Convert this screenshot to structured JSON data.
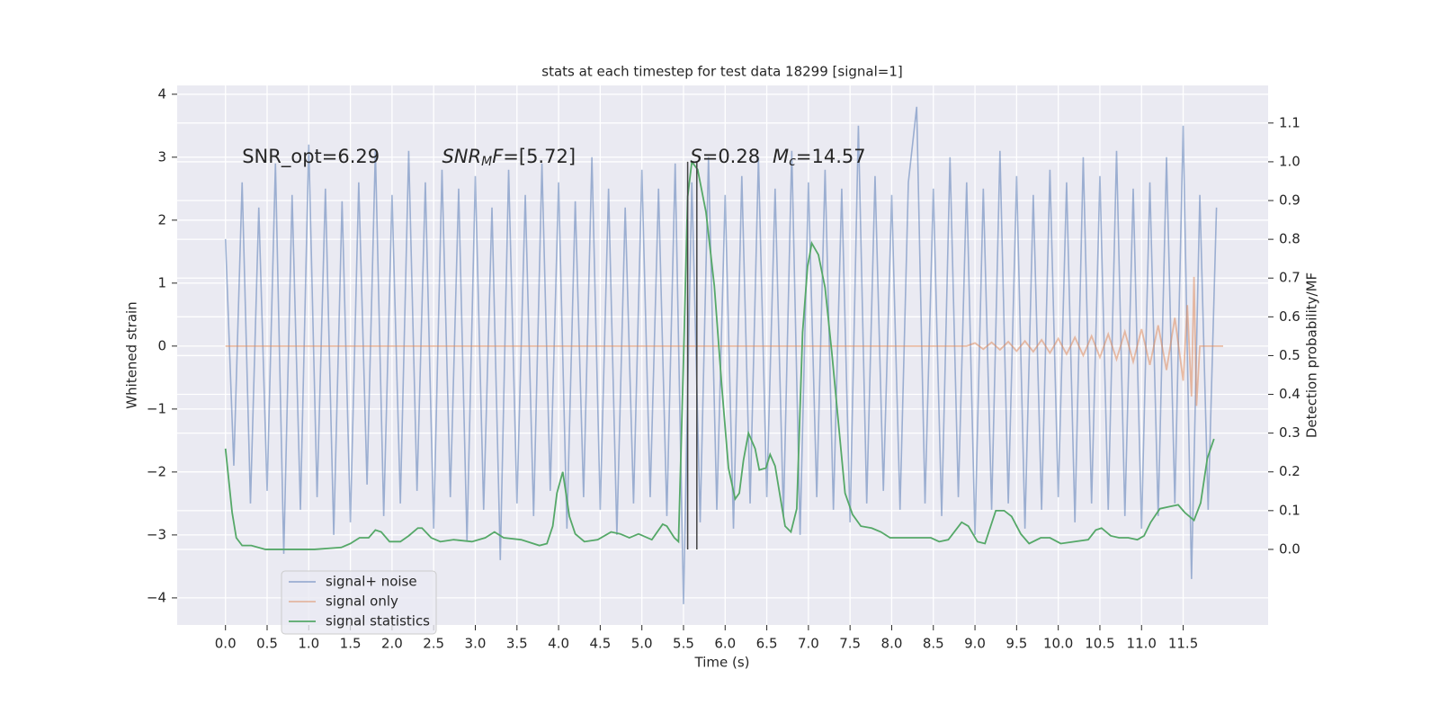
{
  "chart_data": {
    "type": "line",
    "title": "stats at each timestep for test data 18299 [signal=1]",
    "xlabel": "Time (s)",
    "ylabel": "Whitened strain",
    "y2label": "Detection probability/MF",
    "xlim": [
      -0.58,
      12.52
    ],
    "ylim": [
      -4.43,
      4.14
    ],
    "y2lim": [
      -0.195,
      1.197
    ],
    "xticks": [
      {
        "value": 0,
        "label": "0.0"
      },
      {
        "value": 0.5,
        "label": "0.5"
      },
      {
        "value": 1,
        "label": "1.0"
      },
      {
        "value": 1.5,
        "label": "1.5"
      },
      {
        "value": 2,
        "label": "2.0"
      },
      {
        "value": 2.5,
        "label": "2.5"
      },
      {
        "value": 3,
        "label": "3.0"
      },
      {
        "value": 3.5,
        "label": "3.5"
      },
      {
        "value": 4,
        "label": "4.0"
      },
      {
        "value": 4.5,
        "label": "4.5"
      },
      {
        "value": 5,
        "label": "5.0"
      },
      {
        "value": 5.5,
        "label": "5.5"
      },
      {
        "value": 6,
        "label": "6.0"
      },
      {
        "value": 6.5,
        "label": "6.5"
      },
      {
        "value": 7,
        "label": "7.0"
      },
      {
        "value": 7.5,
        "label": "7.5"
      },
      {
        "value": 8,
        "label": "8.0"
      },
      {
        "value": 8.5,
        "label": "8.5"
      },
      {
        "value": 9,
        "label": "9.0"
      },
      {
        "value": 9.5,
        "label": "9.5"
      },
      {
        "value": 10,
        "label": "10.0"
      },
      {
        "value": 10.5,
        "label": "10.5"
      },
      {
        "value": 11,
        "label": "11.0"
      },
      {
        "value": 11.5,
        "label": "11.5"
      }
    ],
    "yticks": [
      {
        "value": -4,
        "label": "−4"
      },
      {
        "value": -3,
        "label": "−3"
      },
      {
        "value": -2,
        "label": "−2"
      },
      {
        "value": -1,
        "label": "−1"
      },
      0,
      1,
      2,
      3,
      4
    ],
    "y2ticks": [
      {
        "value": 0,
        "label": "0.0"
      },
      {
        "value": 0.1,
        "label": "0.1"
      },
      {
        "value": 0.2,
        "label": "0.2"
      },
      {
        "value": 0.3,
        "label": "0.3"
      },
      {
        "value": 0.4,
        "label": "0.4"
      },
      {
        "value": 0.5,
        "label": "0.5"
      },
      {
        "value": 0.6,
        "label": "0.6"
      },
      {
        "value": 0.7,
        "label": "0.7"
      },
      {
        "value": 0.8,
        "label": "0.8"
      },
      {
        "value": 0.9,
        "label": "0.9"
      },
      {
        "value": 1.0,
        "label": "1.0"
      },
      {
        "value": 1.1,
        "label": "1.1"
      }
    ],
    "grid": true,
    "background": "#eaeaf2",
    "legend": "lower left",
    "series": [
      {
        "name": "signal+ noise",
        "color": "#4c72b0",
        "opacity": 0.5,
        "x": [
          0,
          0.1,
          0.2,
          0.3,
          0.4,
          0.5,
          0.6,
          0.7,
          0.8,
          0.9,
          1,
          1.1,
          1.2,
          1.3,
          1.4,
          1.5,
          1.6,
          1.7,
          1.8,
          1.9,
          2,
          2.1,
          2.2,
          2.3,
          2.4,
          2.5,
          2.6,
          2.7,
          2.8,
          2.9,
          3,
          3.1,
          3.2,
          3.3,
          3.4,
          3.5,
          3.6,
          3.7,
          3.8,
          3.9,
          4,
          4.1,
          4.2,
          4.3,
          4.4,
          4.5,
          4.6,
          4.7,
          4.8,
          4.9,
          5,
          5.1,
          5.2,
          5.3,
          5.4,
          5.5,
          5.6,
          5.7,
          5.8,
          5.9,
          6,
          6.1,
          6.2,
          6.3,
          6.4,
          6.5,
          6.6,
          6.7,
          6.8,
          6.9,
          7,
          7.1,
          7.2,
          7.3,
          7.4,
          7.5,
          7.6,
          7.7,
          7.8,
          7.9,
          8,
          8.1,
          8.2,
          8.3,
          8.4,
          8.5,
          8.6,
          8.7,
          8.8,
          8.9,
          9,
          9.1,
          9.2,
          9.3,
          9.4,
          9.5,
          9.6,
          9.7,
          9.8,
          9.9,
          10,
          10.1,
          10.2,
          10.3,
          10.4,
          10.5,
          10.6,
          10.7,
          10.8,
          10.9,
          11,
          11.1,
          11.2,
          11.3,
          11.4,
          11.5,
          11.6,
          11.7,
          11.8,
          11.9
        ],
        "values": [
          1.7,
          -1.9,
          2.6,
          -2.5,
          2.2,
          -2.3,
          2.9,
          -3.3,
          2.4,
          -2.6,
          3.2,
          -2.4,
          2.5,
          -3.0,
          2.3,
          -2.8,
          2.6,
          -2.2,
          3.1,
          -2.7,
          2.4,
          -2.5,
          3.1,
          -2.3,
          2.6,
          -2.9,
          2.8,
          -2.4,
          2.5,
          -3.1,
          2.7,
          -2.6,
          2.2,
          -3.4,
          2.8,
          -2.5,
          2.4,
          -2.7,
          2.9,
          -2.3,
          2.6,
          -2.9,
          2.3,
          -2.4,
          3.0,
          -2.6,
          2.5,
          -3.0,
          2.2,
          -2.5,
          2.8,
          -2.4,
          2.5,
          -2.7,
          2.9,
          -4.1,
          2.6,
          -2.8,
          3.0,
          -2.6,
          2.4,
          -2.9,
          2.7,
          -2.5,
          3.0,
          -2.4,
          2.5,
          -2.7,
          3.1,
          -3.0,
          2.6,
          -2.4,
          2.8,
          -2.6,
          2.5,
          -2.8,
          3.5,
          -2.5,
          2.7,
          -2.3,
          2.4,
          -2.6,
          2.6,
          3.8,
          -2.5,
          2.5,
          -2.7,
          3.0,
          -2.4,
          2.6,
          -3.0,
          2.5,
          -2.6,
          3.1,
          -2.5,
          2.7,
          -2.9,
          2.4,
          -2.6,
          2.8,
          -2.4,
          2.6,
          -2.8,
          3.0,
          -2.5,
          2.7,
          -2.6,
          3.1,
          -2.7,
          2.5,
          -2.9,
          2.6,
          -2.7,
          3.0,
          -2.5,
          3.5,
          -3.7,
          2.4,
          -2.6,
          2.2
        ]
      },
      {
        "name": "signal only",
        "color": "#dd8452",
        "opacity": 0.5,
        "x": [
          0,
          8.9,
          9.0,
          9.1,
          9.2,
          9.3,
          9.4,
          9.5,
          9.6,
          9.7,
          9.8,
          9.9,
          10.0,
          10.1,
          10.2,
          10.3,
          10.4,
          10.5,
          10.6,
          10.7,
          10.8,
          10.9,
          11.0,
          11.1,
          11.2,
          11.3,
          11.4,
          11.5,
          11.55,
          11.6,
          11.63,
          11.66,
          11.7,
          11.98
        ],
        "values": [
          0,
          0,
          0.05,
          -0.05,
          0.06,
          -0.06,
          0.07,
          -0.08,
          0.08,
          -0.09,
          0.1,
          -0.11,
          0.12,
          -0.13,
          0.14,
          -0.15,
          0.16,
          -0.18,
          0.19,
          -0.21,
          0.23,
          -0.25,
          0.27,
          -0.3,
          0.33,
          -0.38,
          0.45,
          -0.55,
          0.65,
          -0.8,
          1.1,
          -0.95,
          0,
          0
        ]
      },
      {
        "name": "signal statistics",
        "color": "#55a868",
        "opacity": 1,
        "axis": "y2",
        "x": [
          0,
          0.08,
          0.13,
          0.2,
          0.31,
          0.48,
          1.07,
          1.39,
          1.5,
          1.61,
          1.72,
          1.8,
          1.87,
          1.97,
          2.1,
          2.2,
          2.31,
          2.36,
          2.47,
          2.58,
          2.74,
          2.96,
          3.12,
          3.23,
          3.34,
          3.55,
          3.77,
          3.86,
          3.93,
          3.98,
          4.05,
          4.13,
          4.2,
          4.31,
          4.47,
          4.63,
          4.74,
          4.85,
          4.96,
          5.12,
          5.25,
          5.3,
          5.39,
          5.44,
          5.5,
          5.55,
          5.6,
          5.67,
          5.77,
          5.87,
          5.96,
          6.04,
          6.12,
          6.17,
          6.22,
          6.28,
          6.36,
          6.41,
          6.49,
          6.54,
          6.6,
          6.65,
          6.72,
          6.79,
          6.86,
          6.93,
          6.99,
          7.04,
          7.12,
          7.2,
          7.28,
          7.35,
          7.44,
          7.53,
          7.63,
          7.76,
          7.87,
          7.98,
          8.14,
          8.3,
          8.47,
          8.57,
          8.68,
          8.84,
          8.92,
          9.03,
          9.12,
          9.25,
          9.35,
          9.44,
          9.55,
          9.65,
          9.79,
          9.9,
          10.03,
          10.19,
          10.36,
          10.45,
          10.52,
          10.63,
          10.73,
          10.84,
          10.95,
          11.03,
          11.11,
          11.22,
          11.33,
          11.44,
          11.52,
          11.63,
          11.71,
          11.79,
          11.87
        ],
        "values": [
          0.26,
          0.095,
          0.03,
          0.01,
          0.01,
          0.0,
          0.0,
          0.005,
          0.015,
          0.03,
          0.03,
          0.05,
          0.045,
          0.02,
          0.02,
          0.035,
          0.055,
          0.055,
          0.03,
          0.02,
          0.025,
          0.02,
          0.03,
          0.045,
          0.03,
          0.025,
          0.01,
          0.015,
          0.06,
          0.145,
          0.2,
          0.085,
          0.04,
          0.02,
          0.025,
          0.045,
          0.04,
          0.03,
          0.04,
          0.025,
          0.065,
          0.06,
          0.03,
          0.02,
          0.49,
          0.91,
          1.0,
          0.98,
          0.87,
          0.68,
          0.42,
          0.21,
          0.13,
          0.145,
          0.23,
          0.3,
          0.26,
          0.205,
          0.21,
          0.245,
          0.215,
          0.15,
          0.06,
          0.045,
          0.105,
          0.56,
          0.73,
          0.79,
          0.76,
          0.675,
          0.51,
          0.35,
          0.145,
          0.09,
          0.06,
          0.055,
          0.045,
          0.03,
          0.03,
          0.03,
          0.03,
          0.02,
          0.025,
          0.07,
          0.06,
          0.02,
          0.015,
          0.1,
          0.1,
          0.085,
          0.04,
          0.015,
          0.03,
          0.03,
          0.015,
          0.02,
          0.025,
          0.05,
          0.055,
          0.035,
          0.03,
          0.03,
          0.025,
          0.035,
          0.07,
          0.105,
          0.11,
          0.115,
          0.095,
          0.075,
          0.12,
          0.235,
          0.285
        ]
      }
    ],
    "vlines": [
      5.55,
      5.66
    ],
    "vline_span": [
      0,
      1
    ],
    "vline_color": "#444444",
    "annotations": [
      {
        "x": 0.2,
        "y": 3.0,
        "segments": [
          {
            "text": "SNR_opt=6.29"
          }
        ]
      },
      {
        "x": 2.6,
        "y": 3.0,
        "segments": [
          {
            "text": "SNR",
            "style": "math"
          },
          {
            "text": "M",
            "style": "sub"
          },
          {
            "text": "F",
            "style": "math"
          },
          {
            "text": "=[5.72]"
          }
        ]
      },
      {
        "x": 5.58,
        "y": 3.0,
        "segments": [
          {
            "text": "S",
            "style": "math"
          },
          {
            "text": "=0.28"
          }
        ]
      },
      {
        "x": 6.57,
        "y": 3.0,
        "segments": [
          {
            "text": "M",
            "style": "math"
          },
          {
            "text": "c",
            "style": "sub"
          },
          {
            "text": "=14.57"
          }
        ]
      }
    ]
  }
}
